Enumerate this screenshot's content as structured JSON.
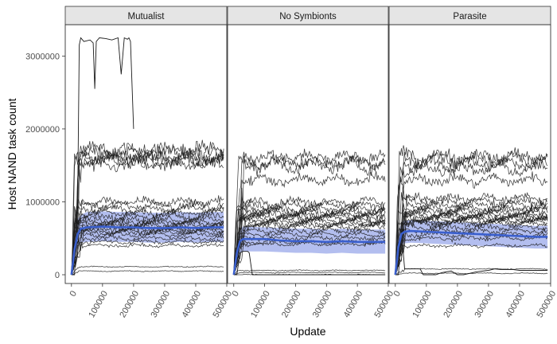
{
  "chart_data": {
    "type": "line",
    "xlabel": "Update",
    "ylabel": "Host NAND task count",
    "xlim": [
      -20000,
      500000
    ],
    "ylim": [
      -120000,
      3430000
    ],
    "x_ticks": [
      0,
      100000,
      200000,
      300000,
      400000,
      500000
    ],
    "x_tick_labels": [
      "0",
      "100000",
      "200000",
      "300000",
      "400000",
      "500000"
    ],
    "y_ticks": [
      0,
      1000000,
      2000000,
      3000000
    ],
    "y_tick_labels": [
      "0",
      "1000000",
      "2000000",
      "3000000"
    ],
    "grid": false,
    "colors": {
      "strip_fill": "#e5e5e5",
      "run_line": "#1a1a1a",
      "mean_line": "#3a5fcd",
      "ci_ribbon": "#9aa8ea"
    },
    "facets": [
      {
        "name": "Mutualist",
        "mean": {
          "x": [
            0,
            10000,
            20000,
            30000,
            50000,
            100000,
            150000,
            200000,
            250000,
            300000,
            350000,
            400000,
            450000,
            490000
          ],
          "y": [
            0,
            350000,
            560000,
            630000,
            650000,
            660000,
            650000,
            650000,
            640000,
            640000,
            650000,
            640000,
            650000,
            650000
          ]
        },
        "ci_upper": [
          0,
          520000,
          760000,
          820000,
          860000,
          870000,
          860000,
          860000,
          850000,
          850000,
          860000,
          850000,
          860000,
          860000
        ],
        "ci_lower": [
          0,
          200000,
          400000,
          440000,
          450000,
          460000,
          450000,
          450000,
          440000,
          440000,
          450000,
          440000,
          450000,
          450000
        ],
        "run_levels": [
          1620000,
          1600000,
          1560000,
          1680000,
          1520000,
          1700000,
          950000,
          900000,
          1000000,
          850000,
          800000,
          760000,
          720000,
          700000,
          680000,
          650000,
          620000,
          600000,
          580000,
          550000,
          500000,
          450000,
          400000,
          110000,
          50000
        ],
        "outlier": {
          "x": [
            0,
            10000,
            20000,
            25000,
            30000,
            40000,
            60000,
            70000,
            75000,
            80000,
            90000,
            110000,
            130000,
            150000,
            160000,
            170000,
            175000,
            180000,
            185000,
            190000,
            200000
          ],
          "y": [
            0,
            0,
            1000000,
            3150000,
            3250000,
            3200000,
            3220000,
            3180000,
            2550000,
            3200000,
            3250000,
            3240000,
            3220000,
            3250000,
            2750000,
            3250000,
            3240000,
            3230000,
            3250000,
            3200000,
            2000000
          ]
        }
      },
      {
        "name": "No Symbionts",
        "mean": {
          "x": [
            0,
            10000,
            20000,
            30000,
            50000,
            100000,
            150000,
            200000,
            250000,
            300000,
            350000,
            400000,
            450000,
            490000
          ],
          "y": [
            0,
            300000,
            460000,
            490000,
            490000,
            490000,
            470000,
            460000,
            460000,
            450000,
            460000,
            450000,
            450000,
            450000
          ]
        },
        "ci_upper": [
          0,
          450000,
          620000,
          660000,
          660000,
          650000,
          640000,
          630000,
          630000,
          620000,
          630000,
          620000,
          620000,
          620000
        ],
        "ci_lower": [
          0,
          160000,
          300000,
          320000,
          320000,
          320000,
          310000,
          300000,
          300000,
          290000,
          300000,
          290000,
          290000,
          290000
        ],
        "run_levels": [
          1560000,
          1500000,
          1600000,
          1300000,
          1000000,
          950000,
          900000,
          870000,
          850000,
          820000,
          800000,
          780000,
          750000,
          730000,
          700000,
          680000,
          650000,
          600000,
          550000,
          500000,
          450000,
          420000,
          60000,
          30000,
          0
        ],
        "outlier": {
          "x": [
            0,
            10000,
            20000,
            30000,
            45000,
            50000,
            60000,
            70000,
            100000,
            130000,
            150000,
            200000,
            250000,
            300000,
            350000,
            400000,
            450000,
            490000
          ],
          "y": [
            0,
            0,
            300000,
            320000,
            320000,
            300000,
            0,
            0,
            0,
            0,
            0,
            0,
            0,
            0,
            0,
            0,
            0,
            0
          ]
        }
      },
      {
        "name": "Parasite",
        "mean": {
          "x": [
            0,
            10000,
            20000,
            30000,
            50000,
            100000,
            150000,
            200000,
            250000,
            300000,
            350000,
            400000,
            450000,
            490000
          ],
          "y": [
            0,
            380000,
            560000,
            590000,
            600000,
            590000,
            580000,
            570000,
            560000,
            550000,
            540000,
            530000,
            520000,
            520000
          ]
        },
        "ci_upper": [
          0,
          560000,
          720000,
          740000,
          750000,
          740000,
          730000,
          720000,
          710000,
          700000,
          690000,
          680000,
          670000,
          670000
        ],
        "ci_lower": [
          0,
          220000,
          420000,
          430000,
          440000,
          430000,
          420000,
          410000,
          400000,
          390000,
          380000,
          370000,
          360000,
          360000
        ],
        "run_levels": [
          1620000,
          1580000,
          1520000,
          1450000,
          1300000,
          1050000,
          1000000,
          950000,
          900000,
          880000,
          850000,
          820000,
          800000,
          780000,
          760000,
          740000,
          720000,
          700000,
          650000,
          600000,
          550000,
          500000,
          400000,
          80000,
          20000
        ],
        "outlier": {
          "x": [
            0,
            10000,
            20000,
            30000,
            40000,
            80000,
            90000,
            130000,
            150000,
            180000,
            200000,
            220000,
            260000,
            300000,
            320000,
            340000,
            380000,
            400000,
            450000,
            490000
          ],
          "y": [
            0,
            0,
            600000,
            80000,
            80000,
            80000,
            0,
            0,
            30000,
            50000,
            0,
            0,
            40000,
            60000,
            80000,
            70000,
            70000,
            60000,
            60000,
            60000
          ]
        }
      }
    ]
  }
}
